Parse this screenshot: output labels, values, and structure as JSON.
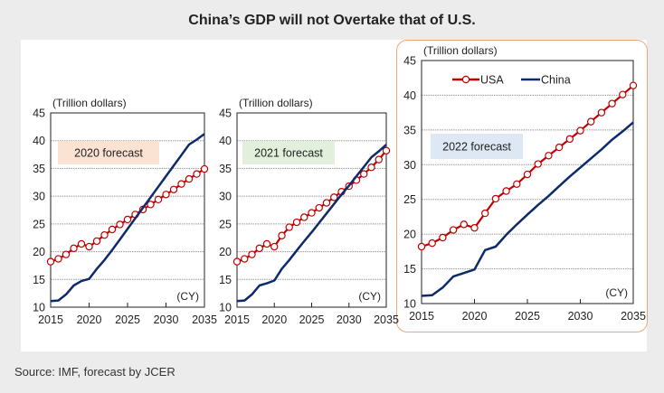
{
  "page": {
    "title": "China’s GDP will not Overtake that of U.S.",
    "source": "Source: IMF, forecast by JCER"
  },
  "legend": {
    "usa": "USA",
    "china": "China"
  },
  "colors": {
    "usa": "#c00000",
    "china": "#0d2b6b",
    "forecast_2020": "#fbe3d4",
    "forecast_2021": "#e2efda",
    "forecast_2022": "#dde8f4",
    "highlight_border": "#e8a87c"
  },
  "chart_data": [
    {
      "type": "line",
      "title": "2020 forecast",
      "ylabel": "(Trillion dollars)",
      "xlabel": "(CY)",
      "ylim": [
        10,
        45
      ],
      "xlim": [
        2015,
        2035
      ],
      "yticks": [
        10,
        15,
        20,
        25,
        30,
        35,
        40,
        45
      ],
      "xticks": [
        2015,
        2020,
        2025,
        2030,
        2035
      ],
      "grid": true,
      "x": [
        2015,
        2016,
        2017,
        2018,
        2019,
        2020,
        2021,
        2022,
        2023,
        2024,
        2025,
        2026,
        2027,
        2028,
        2029,
        2030,
        2031,
        2032,
        2033,
        2034,
        2035
      ],
      "series": [
        {
          "name": "USA",
          "values": [
            18.2,
            18.7,
            19.5,
            20.6,
            21.4,
            20.9,
            21.9,
            23.0,
            24.0,
            24.9,
            25.8,
            26.7,
            27.6,
            28.5,
            29.4,
            30.3,
            31.2,
            32.2,
            33.1,
            34.0,
            34.9
          ]
        },
        {
          "name": "China",
          "values": [
            11.1,
            11.2,
            12.3,
            13.9,
            14.7,
            15.1,
            16.9,
            18.5,
            20.3,
            22.2,
            24.1,
            26.0,
            27.9,
            29.8,
            31.7,
            33.6,
            35.5,
            37.4,
            39.3,
            40.2,
            41.2
          ]
        }
      ],
      "label_color_key": "forecast_2020"
    },
    {
      "type": "line",
      "title": "2021 forecast",
      "ylabel": "(Trillion dollars)",
      "xlabel": "(CY)",
      "ylim": [
        10,
        45
      ],
      "xlim": [
        2015,
        2035
      ],
      "yticks": [
        10,
        15,
        20,
        25,
        30,
        35,
        40,
        45
      ],
      "xticks": [
        2015,
        2020,
        2025,
        2030,
        2035
      ],
      "grid": true,
      "x": [
        2015,
        2016,
        2017,
        2018,
        2019,
        2020,
        2021,
        2022,
        2023,
        2024,
        2025,
        2026,
        2027,
        2028,
        2029,
        2030,
        2031,
        2032,
        2033,
        2034,
        2035
      ],
      "series": [
        {
          "name": "USA",
          "values": [
            18.2,
            18.7,
            19.5,
            20.6,
            21.4,
            20.9,
            22.9,
            24.4,
            25.3,
            26.2,
            27.0,
            27.9,
            28.8,
            29.8,
            30.8,
            31.8,
            32.9,
            34.0,
            35.2,
            36.6,
            38.2
          ]
        },
        {
          "name": "China",
          "values": [
            11.1,
            11.2,
            12.3,
            13.9,
            14.3,
            14.8,
            16.9,
            18.5,
            20.2,
            21.9,
            23.5,
            25.2,
            26.9,
            28.6,
            30.3,
            31.9,
            33.6,
            35.3,
            37.0,
            38.1,
            39.3
          ]
        }
      ],
      "label_color_key": "forecast_2021"
    },
    {
      "type": "line",
      "title": "2022 forecast",
      "ylabel": "(Trillion dollars)",
      "xlabel": "(CY)",
      "ylim": [
        10,
        45
      ],
      "xlim": [
        2015,
        2035
      ],
      "yticks": [
        10,
        15,
        20,
        25,
        30,
        35,
        40,
        45
      ],
      "xticks": [
        2015,
        2020,
        2025,
        2030,
        2035
      ],
      "grid": true,
      "legend": "top",
      "x": [
        2015,
        2016,
        2017,
        2018,
        2019,
        2020,
        2021,
        2022,
        2023,
        2024,
        2025,
        2026,
        2027,
        2028,
        2029,
        2030,
        2031,
        2032,
        2033,
        2034,
        2035
      ],
      "series": [
        {
          "name": "USA",
          "values": [
            18.2,
            18.7,
            19.5,
            20.6,
            21.4,
            20.9,
            23.0,
            25.1,
            26.2,
            27.2,
            28.6,
            30.1,
            31.3,
            32.5,
            33.7,
            34.9,
            36.2,
            37.5,
            38.8,
            40.1,
            41.4
          ]
        },
        {
          "name": "China",
          "values": [
            11.1,
            11.2,
            12.3,
            13.9,
            14.4,
            14.9,
            17.7,
            18.2,
            19.9,
            21.4,
            22.8,
            24.2,
            25.5,
            26.9,
            28.3,
            29.6,
            30.9,
            32.2,
            33.6,
            34.8,
            36.1
          ]
        }
      ],
      "label_color_key": "forecast_2022"
    }
  ]
}
